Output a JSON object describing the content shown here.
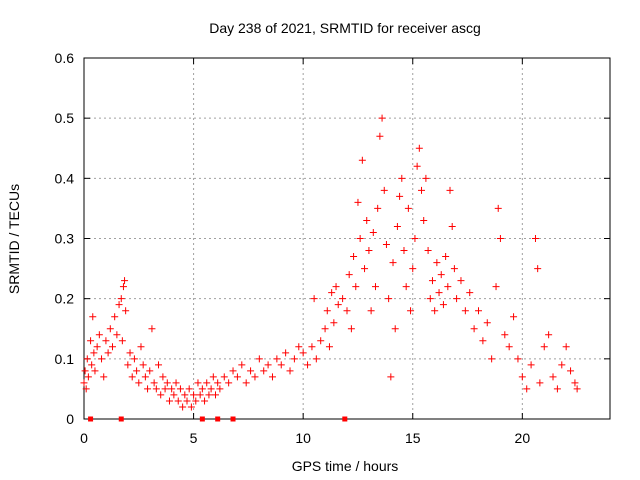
{
  "chart_data": {
    "type": "scatter",
    "title": "Day 238 of 2021, SRMTID for receiver ascg",
    "xlabel": "GPS time / hours",
    "ylabel": "SRMTID / TECUs",
    "xlim": [
      0,
      24
    ],
    "ylim": [
      0,
      0.6
    ],
    "xticks": [
      0,
      5,
      10,
      15,
      20
    ],
    "xtick_labels": [
      "0",
      "5",
      "10",
      "15",
      "20"
    ],
    "yticks": [
      0,
      0.1,
      0.2,
      0.3,
      0.4,
      0.5,
      0.6
    ],
    "ytick_labels": [
      "0",
      "0.1",
      "0.2",
      "0.3",
      "0.4",
      "0.5",
      "0.6"
    ],
    "grid": true,
    "marker": "+",
    "marker_color": "#ff0000",
    "series": [
      {
        "name": "SRMTID",
        "points": [
          [
            0.0,
            0.06
          ],
          [
            0.05,
            0.08
          ],
          [
            0.1,
            0.05
          ],
          [
            0.15,
            0.1
          ],
          [
            0.2,
            0.07
          ],
          [
            0.3,
            0.13
          ],
          [
            0.35,
            0.09
          ],
          [
            0.4,
            0.17
          ],
          [
            0.45,
            0.11
          ],
          [
            0.5,
            0.08
          ],
          [
            0.6,
            0.12
          ],
          [
            0.7,
            0.14
          ],
          [
            0.8,
            0.1
          ],
          [
            0.9,
            0.07
          ],
          [
            1.0,
            0.13
          ],
          [
            1.1,
            0.11
          ],
          [
            1.2,
            0.15
          ],
          [
            1.3,
            0.12
          ],
          [
            1.4,
            0.17
          ],
          [
            1.5,
            0.14
          ],
          [
            1.6,
            0.19
          ],
          [
            1.7,
            0.2
          ],
          [
            1.75,
            0.13
          ],
          [
            1.8,
            0.22
          ],
          [
            1.85,
            0.23
          ],
          [
            1.9,
            0.18
          ],
          [
            2.0,
            0.09
          ],
          [
            2.1,
            0.11
          ],
          [
            2.2,
            0.07
          ],
          [
            2.3,
            0.1
          ],
          [
            2.4,
            0.08
          ],
          [
            2.5,
            0.06
          ],
          [
            2.6,
            0.12
          ],
          [
            2.7,
            0.09
          ],
          [
            2.8,
            0.07
          ],
          [
            2.9,
            0.05
          ],
          [
            3.0,
            0.08
          ],
          [
            3.1,
            0.15
          ],
          [
            3.2,
            0.06
          ],
          [
            3.3,
            0.05
          ],
          [
            3.4,
            0.09
          ],
          [
            3.5,
            0.04
          ],
          [
            3.6,
            0.07
          ],
          [
            3.7,
            0.05
          ],
          [
            3.8,
            0.06
          ],
          [
            3.9,
            0.03
          ],
          [
            4.0,
            0.05
          ],
          [
            4.1,
            0.04
          ],
          [
            4.2,
            0.06
          ],
          [
            4.3,
            0.03
          ],
          [
            4.4,
            0.05
          ],
          [
            4.5,
            0.02
          ],
          [
            4.6,
            0.04
          ],
          [
            4.7,
            0.03
          ],
          [
            4.8,
            0.05
          ],
          [
            4.9,
            0.02
          ],
          [
            5.0,
            0.04
          ],
          [
            5.1,
            0.03
          ],
          [
            5.2,
            0.06
          ],
          [
            5.3,
            0.04
          ],
          [
            5.4,
            0.05
          ],
          [
            5.5,
            0.03
          ],
          [
            5.6,
            0.06
          ],
          [
            5.7,
            0.04
          ],
          [
            5.8,
            0.05
          ],
          [
            5.9,
            0.07
          ],
          [
            6.0,
            0.04
          ],
          [
            6.1,
            0.06
          ],
          [
            6.2,
            0.05
          ],
          [
            6.4,
            0.07
          ],
          [
            6.6,
            0.06
          ],
          [
            6.8,
            0.08
          ],
          [
            7.0,
            0.07
          ],
          [
            7.2,
            0.09
          ],
          [
            7.4,
            0.06
          ],
          [
            7.6,
            0.08
          ],
          [
            7.8,
            0.07
          ],
          [
            8.0,
            0.1
          ],
          [
            8.2,
            0.08
          ],
          [
            8.4,
            0.09
          ],
          [
            8.6,
            0.07
          ],
          [
            8.8,
            0.1
          ],
          [
            9.0,
            0.09
          ],
          [
            9.2,
            0.11
          ],
          [
            9.4,
            0.08
          ],
          [
            9.6,
            0.1
          ],
          [
            9.8,
            0.12
          ],
          [
            10.0,
            0.11
          ],
          [
            10.2,
            0.09
          ],
          [
            10.4,
            0.12
          ],
          [
            10.5,
            0.2
          ],
          [
            10.6,
            0.1
          ],
          [
            10.8,
            0.13
          ],
          [
            11.0,
            0.15
          ],
          [
            11.1,
            0.18
          ],
          [
            11.2,
            0.12
          ],
          [
            11.3,
            0.21
          ],
          [
            11.4,
            0.16
          ],
          [
            11.5,
            0.22
          ],
          [
            11.6,
            0.19
          ],
          [
            11.8,
            0.2
          ],
          [
            12.0,
            0.18
          ],
          [
            12.1,
            0.24
          ],
          [
            12.2,
            0.15
          ],
          [
            12.3,
            0.27
          ],
          [
            12.4,
            0.22
          ],
          [
            12.5,
            0.36
          ],
          [
            12.6,
            0.3
          ],
          [
            12.7,
            0.43
          ],
          [
            12.8,
            0.25
          ],
          [
            12.9,
            0.33
          ],
          [
            13.0,
            0.28
          ],
          [
            13.1,
            0.18
          ],
          [
            13.2,
            0.31
          ],
          [
            13.3,
            0.22
          ],
          [
            13.4,
            0.35
          ],
          [
            13.5,
            0.47
          ],
          [
            13.6,
            0.5
          ],
          [
            13.7,
            0.38
          ],
          [
            13.8,
            0.29
          ],
          [
            13.9,
            0.2
          ],
          [
            14.0,
            0.07
          ],
          [
            14.1,
            0.26
          ],
          [
            14.2,
            0.15
          ],
          [
            14.3,
            0.32
          ],
          [
            14.4,
            0.37
          ],
          [
            14.5,
            0.4
          ],
          [
            14.6,
            0.28
          ],
          [
            14.7,
            0.22
          ],
          [
            14.8,
            0.35
          ],
          [
            14.9,
            0.18
          ],
          [
            15.0,
            0.25
          ],
          [
            15.1,
            0.3
          ],
          [
            15.2,
            0.42
          ],
          [
            15.3,
            0.45
          ],
          [
            15.4,
            0.38
          ],
          [
            15.5,
            0.33
          ],
          [
            15.6,
            0.4
          ],
          [
            15.7,
            0.28
          ],
          [
            15.8,
            0.2
          ],
          [
            15.9,
            0.23
          ],
          [
            16.0,
            0.18
          ],
          [
            16.1,
            0.26
          ],
          [
            16.2,
            0.21
          ],
          [
            16.3,
            0.24
          ],
          [
            16.4,
            0.19
          ],
          [
            16.5,
            0.27
          ],
          [
            16.6,
            0.22
          ],
          [
            16.7,
            0.38
          ],
          [
            16.8,
            0.32
          ],
          [
            16.9,
            0.25
          ],
          [
            17.0,
            0.2
          ],
          [
            17.2,
            0.23
          ],
          [
            17.4,
            0.18
          ],
          [
            17.6,
            0.21
          ],
          [
            17.8,
            0.15
          ],
          [
            18.0,
            0.18
          ],
          [
            18.2,
            0.13
          ],
          [
            18.4,
            0.16
          ],
          [
            18.6,
            0.1
          ],
          [
            18.8,
            0.22
          ],
          [
            18.9,
            0.35
          ],
          [
            19.0,
            0.3
          ],
          [
            19.2,
            0.14
          ],
          [
            19.4,
            0.12
          ],
          [
            19.6,
            0.17
          ],
          [
            19.8,
            0.1
          ],
          [
            20.0,
            0.07
          ],
          [
            20.2,
            0.05
          ],
          [
            20.4,
            0.09
          ],
          [
            20.6,
            0.3
          ],
          [
            20.7,
            0.25
          ],
          [
            20.8,
            0.06
          ],
          [
            21.0,
            0.12
          ],
          [
            21.2,
            0.14
          ],
          [
            21.4,
            0.07
          ],
          [
            21.6,
            0.05
          ],
          [
            21.8,
            0.09
          ],
          [
            22.0,
            0.12
          ],
          [
            22.2,
            0.08
          ],
          [
            22.4,
            0.06
          ],
          [
            22.5,
            0.05
          ]
        ]
      },
      {
        "name": "zero-markers",
        "marker": "square",
        "points": [
          [
            0.3,
            0
          ],
          [
            1.7,
            0
          ],
          [
            5.4,
            0
          ],
          [
            6.1,
            0
          ],
          [
            6.8,
            0
          ],
          [
            11.9,
            0
          ]
        ]
      }
    ]
  }
}
